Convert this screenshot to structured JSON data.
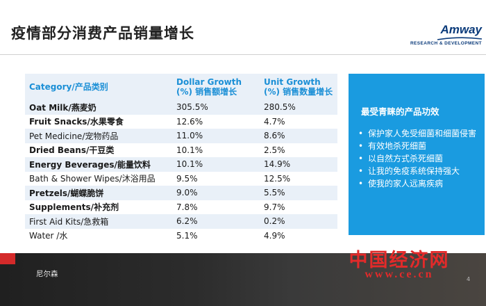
{
  "slide": {
    "title": "疫情部分消费产品销量增长",
    "page_number": "4"
  },
  "logo": {
    "brand": "Amway",
    "subtitle": "RESEARCH & DEVELOPMENT"
  },
  "table": {
    "headers": {
      "category": "Category/产品类别",
      "dollar_growth": "Dollar Growth (%) 销售额增长",
      "unit_growth": "Unit Growth (%) 销售数量增长"
    },
    "rows": [
      {
        "category": "Oat Milk/燕麦奶",
        "dollar": "305.5%",
        "unit": "280.5%",
        "bold": true
      },
      {
        "category": "Fruit Snacks/水果零食",
        "dollar": "12.6%",
        "unit": "4.7%",
        "bold": true
      },
      {
        "category": "Pet Medicine/宠物药品",
        "dollar": "11.0%",
        "unit": "8.6%",
        "bold": false
      },
      {
        "category": "Dried Beans/干豆类",
        "dollar": "10.1%",
        "unit": "2.5%",
        "bold": true
      },
      {
        "category": "Energy Beverages/能量饮料",
        "dollar": "10.1%",
        "unit": "14.9%",
        "bold": true
      },
      {
        "category": "Bath & Shower Wipes/沐浴用品",
        "dollar": "9.5%",
        "unit": "12.5%",
        "bold": false
      },
      {
        "category": "Pretzels/蝴蝶脆饼",
        "dollar": "9.0%",
        "unit": "5.5%",
        "bold": true
      },
      {
        "category": "Supplements/补充剂",
        "dollar": "7.8%",
        "unit": "9.7%",
        "bold": true
      },
      {
        "category": "First Aid Kits/急救箱",
        "dollar": "6.2%",
        "unit": "0.2%",
        "bold": false
      },
      {
        "category": "Water /水",
        "dollar": "5.1%",
        "unit": "4.9%",
        "bold": false
      }
    ]
  },
  "benefits": {
    "title": "最受青睐的产品功效",
    "items": [
      "保护家人免受细菌和细菌侵害",
      "有效地杀死细菌",
      "以自然方式杀死细菌",
      "让我的免疫系统保持强大",
      "使我的家人远离疾病"
    ]
  },
  "footer": {
    "label": "尼尔森"
  },
  "watermark": {
    "text": "中国经济网",
    "url": "www.ce.cn"
  },
  "colors": {
    "header_blue": "#1b8fd6",
    "box_blue": "#1a9be0",
    "row_stripe": "#e9f0f8",
    "logo_navy": "#0a3a7a",
    "watermark_red": "#e32a2a"
  }
}
